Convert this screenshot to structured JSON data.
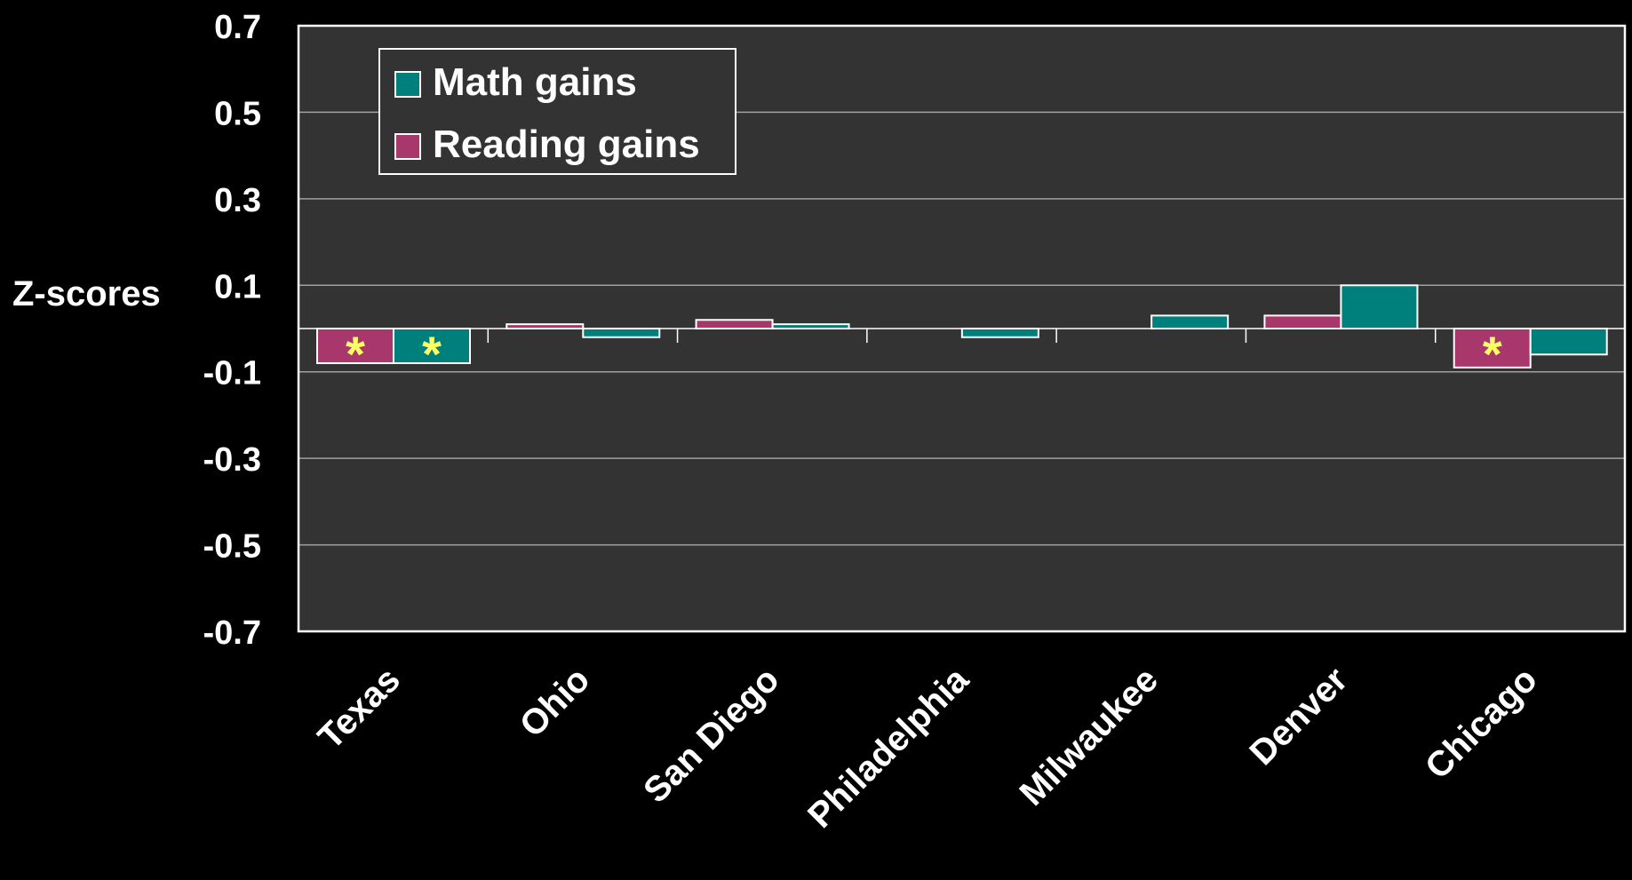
{
  "chart_data": {
    "type": "bar",
    "title": "",
    "xlabel": "",
    "ylabel": "Z-scores",
    "ylim": [
      -0.7,
      0.7
    ],
    "yticks": [
      "0.7",
      "0.5",
      "0.3",
      "0.1",
      "-0.1",
      "-0.3",
      "-0.5",
      "-0.7"
    ],
    "ytick_values": [
      0.7,
      0.5,
      0.3,
      0.1,
      -0.1,
      -0.3,
      -0.5,
      -0.7
    ],
    "grid": true,
    "legend_position": "top-left",
    "categories": [
      "Texas",
      "Ohio",
      "San Diego",
      "Philadelphia",
      "Milwaukee",
      "Denver",
      "Chicago"
    ],
    "series": [
      {
        "name": "Reading gains",
        "color": "#A8386C",
        "values": [
          -0.08,
          0.01,
          0.02,
          0.0,
          0.0,
          0.03,
          -0.09
        ],
        "significant": [
          true,
          false,
          false,
          false,
          false,
          false,
          true
        ]
      },
      {
        "name": "Math gains",
        "color": "#00807C",
        "values": [
          -0.08,
          -0.02,
          0.01,
          -0.02,
          0.03,
          0.1,
          -0.06
        ],
        "significant": [
          true,
          false,
          false,
          false,
          false,
          false,
          false
        ]
      }
    ],
    "legend_order": [
      "Math gains",
      "Reading gains"
    ],
    "significance_marker": "*",
    "significance_color": "#FFFF66",
    "plot_background": "#333333",
    "gridline_color": "#A0A0A0",
    "text_color": "#FFFFFF"
  }
}
